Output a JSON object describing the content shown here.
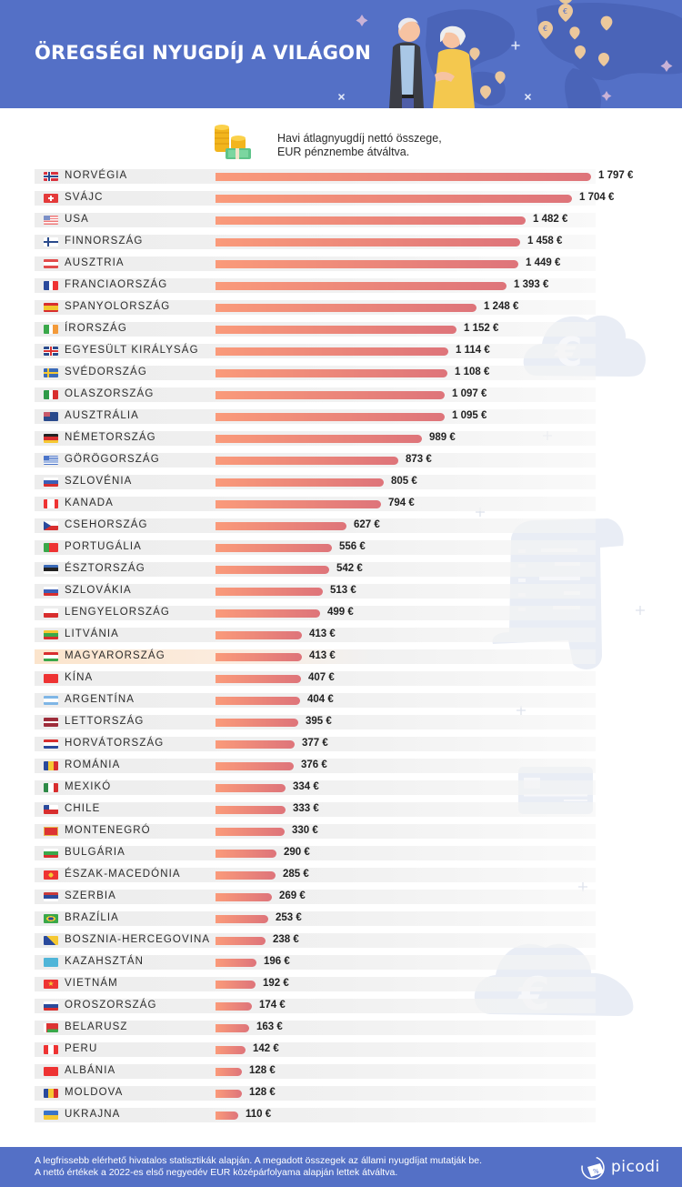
{
  "header": {
    "title": "ÖREGSÉGI NYUGDÍJ A VILÁGON",
    "background_color": "#5470C6"
  },
  "legend": {
    "icon": "coins-and-cash-icon",
    "line1": "Havi átlagnyugdíj nettó összege,",
    "line2": "EUR pénznembe átváltva."
  },
  "footer": {
    "line1": "A legfrissebb elérhető hivatalos statisztikák alapján. A megadott összegek az állami nyugdíjat mutatják be.",
    "line2": "A nettó értékek a 2022-es első negyedév EUR középárfolyama alapján lettek átváltva.",
    "logo": "picodi"
  },
  "colors": {
    "bar_start": "#FA9A7A",
    "bar_end": "#DE747A",
    "row_bg": "#EDEDED",
    "highlight_row_bg": "#FBE4CC",
    "brand": "#5470C6"
  },
  "chart_data": {
    "type": "bar",
    "orientation": "horizontal",
    "title": "ÖREGSÉGI NYUGDÍJ A VILÁGON",
    "subtitle": "Havi átlagnyugdíj nettó összege, EUR pénznembe átváltva.",
    "xlabel": "",
    "ylabel": "",
    "unit": "€",
    "grid": false,
    "legend": "none",
    "highlight": "MAGYARORSZÁG",
    "categories": [
      "NORVÉGIA",
      "SVÁJC",
      "USA",
      "FINNORSZÁG",
      "AUSZTRIA",
      "FRANCIAORSZÁG",
      "SPANYOLORSZÁG",
      "ÍRORSZÁG",
      "EGYESÜLT KIRÁLYSÁG",
      "SVÉDORSZÁG",
      "OLASZORSZÁG",
      "AUSZTRÁLIA",
      "NÉMETORSZÁG",
      "GÖRÖGORSZÁG",
      "SZLOVÉNIA",
      "KANADA",
      "CSEHORSZÁG",
      "PORTUGÁLIA",
      "ÉSZTORSZÁG",
      "SZLOVÁKIA",
      "LENGYELORSZÁG",
      "LITVÁNIA",
      "MAGYARORSZÁG",
      "KÍNA",
      "ARGENTÍNA",
      "LETTORSZÁG",
      "HORVÁTORSZÁG",
      "ROMÁNIA",
      "MEXIKÓ",
      "CHILE",
      "MONTENEGRÓ",
      "BULGÁRIA",
      "ÉSZAK-MACEDÓNIA",
      "SZERBIA",
      "BRAZÍLIA",
      "BOSZNIA-HERCEGOVINA",
      "KAZAHSZTÁN",
      "VIETNÁM",
      "OROSZORSZÁG",
      "BELARUSZ",
      "PERU",
      "ALBÁNIA",
      "MOLDOVA",
      "UKRAJNA"
    ],
    "values": [
      1797,
      1704,
      1482,
      1458,
      1449,
      1393,
      1248,
      1152,
      1114,
      1108,
      1097,
      1095,
      989,
      873,
      805,
      794,
      627,
      556,
      542,
      513,
      499,
      413,
      413,
      407,
      404,
      395,
      377,
      376,
      334,
      333,
      330,
      290,
      285,
      269,
      253,
      238,
      196,
      192,
      174,
      163,
      142,
      128,
      128,
      110
    ],
    "value_labels": [
      "1 797 €",
      "1 704 €",
      "1 482 €",
      "1 458 €",
      "1 449 €",
      "1 393 €",
      "1 248 €",
      "1 152 €",
      "1 114 €",
      "1 108 €",
      "1 097 €",
      "1 095 €",
      "989 €",
      "873 €",
      "805 €",
      "794 €",
      "627 €",
      "556 €",
      "542 €",
      "513 €",
      "499 €",
      "413 €",
      "413 €",
      "407 €",
      "404 €",
      "395 €",
      "377 €",
      "376 €",
      "334 €",
      "333 €",
      "330 €",
      "290 €",
      "285 €",
      "269 €",
      "253 €",
      "238 €",
      "196 €",
      "192 €",
      "174 €",
      "163 €",
      "142 €",
      "128 €",
      "128 €",
      "110 €"
    ],
    "xlim": [
      0,
      1797
    ]
  },
  "rows": [
    {
      "name": "NORVÉGIA",
      "value": 1797,
      "label": "1 797 €",
      "flag": "no"
    },
    {
      "name": "SVÁJC",
      "value": 1704,
      "label": "1 704 €",
      "flag": "ch"
    },
    {
      "name": "USA",
      "value": 1482,
      "label": "1 482 €",
      "flag": "us"
    },
    {
      "name": "FINNORSZÁG",
      "value": 1458,
      "label": "1 458 €",
      "flag": "fi"
    },
    {
      "name": "AUSZTRIA",
      "value": 1449,
      "label": "1 449 €",
      "flag": "at"
    },
    {
      "name": "FRANCIAORSZÁG",
      "value": 1393,
      "label": "1 393 €",
      "flag": "fr"
    },
    {
      "name": "SPANYOLORSZÁG",
      "value": 1248,
      "label": "1 248 €",
      "flag": "es"
    },
    {
      "name": "ÍRORSZÁG",
      "value": 1152,
      "label": "1 152 €",
      "flag": "ie"
    },
    {
      "name": "EGYESÜLT KIRÁLYSÁG",
      "value": 1114,
      "label": "1 114 €",
      "flag": "gb"
    },
    {
      "name": "SVÉDORSZÁG",
      "value": 1108,
      "label": "1 108 €",
      "flag": "se"
    },
    {
      "name": "OLASZORSZÁG",
      "value": 1097,
      "label": "1 097 €",
      "flag": "it"
    },
    {
      "name": "AUSZTRÁLIA",
      "value": 1095,
      "label": "1 095 €",
      "flag": "au"
    },
    {
      "name": "NÉMETORSZÁG",
      "value": 989,
      "label": "989 €",
      "flag": "de"
    },
    {
      "name": "GÖRÖGORSZÁG",
      "value": 873,
      "label": "873 €",
      "flag": "gr"
    },
    {
      "name": "SZLOVÉNIA",
      "value": 805,
      "label": "805 €",
      "flag": "si"
    },
    {
      "name": "KANADA",
      "value": 794,
      "label": "794 €",
      "flag": "ca"
    },
    {
      "name": "CSEHORSZÁG",
      "value": 627,
      "label": "627 €",
      "flag": "cz"
    },
    {
      "name": "PORTUGÁLIA",
      "value": 556,
      "label": "556 €",
      "flag": "pt"
    },
    {
      "name": "ÉSZTORSZÁG",
      "value": 542,
      "label": "542 €",
      "flag": "ee"
    },
    {
      "name": "SZLOVÁKIA",
      "value": 513,
      "label": "513 €",
      "flag": "sk"
    },
    {
      "name": "LENGYELORSZÁG",
      "value": 499,
      "label": "499 €",
      "flag": "pl"
    },
    {
      "name": "LITVÁNIA",
      "value": 413,
      "label": "413 €",
      "flag": "lt"
    },
    {
      "name": "MAGYARORSZÁG",
      "value": 413,
      "label": "413 €",
      "flag": "hu",
      "highlight": true
    },
    {
      "name": "KÍNA",
      "value": 407,
      "label": "407 €",
      "flag": "cn"
    },
    {
      "name": "ARGENTÍNA",
      "value": 404,
      "label": "404 €",
      "flag": "ar"
    },
    {
      "name": "LETTORSZÁG",
      "value": 395,
      "label": "395 €",
      "flag": "lv"
    },
    {
      "name": "HORVÁTORSZÁG",
      "value": 377,
      "label": "377 €",
      "flag": "hr"
    },
    {
      "name": "ROMÁNIA",
      "value": 376,
      "label": "376 €",
      "flag": "ro"
    },
    {
      "name": "MEXIKÓ",
      "value": 334,
      "label": "334 €",
      "flag": "mx"
    },
    {
      "name": "CHILE",
      "value": 333,
      "label": "333 €",
      "flag": "cl"
    },
    {
      "name": "MONTENEGRÓ",
      "value": 330,
      "label": "330 €",
      "flag": "me"
    },
    {
      "name": "BULGÁRIA",
      "value": 290,
      "label": "290 €",
      "flag": "bg"
    },
    {
      "name": "ÉSZAK-MACEDÓNIA",
      "value": 285,
      "label": "285 €",
      "flag": "mk"
    },
    {
      "name": "SZERBIA",
      "value": 269,
      "label": "269 €",
      "flag": "rs"
    },
    {
      "name": "BRAZÍLIA",
      "value": 253,
      "label": "253 €",
      "flag": "br"
    },
    {
      "name": "BOSZNIA-HERCEGOVINA",
      "value": 238,
      "label": "238 €",
      "flag": "ba"
    },
    {
      "name": "KAZAHSZTÁN",
      "value": 196,
      "label": "196 €",
      "flag": "kz"
    },
    {
      "name": "VIETNÁM",
      "value": 192,
      "label": "192 €",
      "flag": "vn"
    },
    {
      "name": "OROSZORSZÁG",
      "value": 174,
      "label": "174 €",
      "flag": "ru"
    },
    {
      "name": "BELARUSZ",
      "value": 163,
      "label": "163 €",
      "flag": "by"
    },
    {
      "name": "PERU",
      "value": 142,
      "label": "142 €",
      "flag": "pe"
    },
    {
      "name": "ALBÁNIA",
      "value": 128,
      "label": "128 €",
      "flag": "al"
    },
    {
      "name": "MOLDOVA",
      "value": 128,
      "label": "128 €",
      "flag": "md"
    },
    {
      "name": "UKRAJNA",
      "value": 110,
      "label": "110 €",
      "flag": "ua"
    }
  ]
}
